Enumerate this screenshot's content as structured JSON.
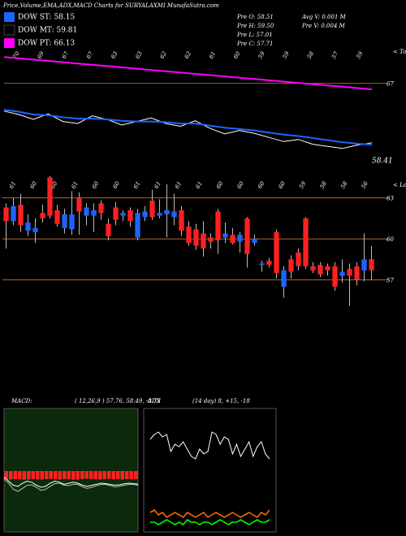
{
  "header": {
    "title": "Price,Volume,EMA,ADX,MACD Charts for SURYALAXMI MunafaSutra.com",
    "info": [
      [
        "Pre O: 58.51",
        "Avg V: 0.001 M"
      ],
      [
        "Pre H: 59.50",
        "Pre V: 0.004 M"
      ],
      [
        "Pre L: 57.01"
      ],
      [
        "Pre C: 57.71"
      ]
    ]
  },
  "chart_data": [
    {
      "type": "line",
      "corner_label": "< Tops",
      "peak_labels": [
        70,
        69,
        67,
        67,
        63,
        63,
        62,
        62,
        61,
        60,
        59,
        59,
        58,
        57,
        59
      ],
      "ylim": [
        55,
        72
      ],
      "yticks": [
        67
      ],
      "tick_color": "#c87533",
      "last_value": 58.41,
      "series": [
        {
          "color": "#ffffff",
          "values": [
            63,
            62.5,
            61.8,
            62.6,
            61.5,
            61.2,
            62.3,
            61.8,
            61,
            61.5,
            62,
            61.2,
            60.8,
            61.6,
            60.5,
            59.7,
            60.2,
            59.8,
            59.2,
            58.6,
            58.9,
            58.2,
            57.9,
            57.6,
            58.1,
            58.41
          ]
        },
        {
          "name": "DOW ST: 58.15",
          "color": "#1e64ff",
          "values": [
            63.2,
            62.9,
            62.5,
            62.4,
            62.1,
            61.9,
            61.9,
            61.8,
            61.6,
            61.5,
            61.5,
            61.4,
            61.2,
            61.2,
            60.9,
            60.6,
            60.4,
            60.2,
            59.9,
            59.6,
            59.4,
            59.1,
            58.8,
            58.5,
            58.3,
            58.15
          ]
        },
        {
          "name": "DOW MT: 59.81",
          "color": "#000000",
          "values": [
            64.5,
            64.31,
            64.12,
            63.94,
            63.75,
            63.56,
            63.37,
            63.19,
            63.0,
            62.81,
            62.62,
            62.44,
            62.25,
            62.06,
            61.87,
            61.69,
            61.5,
            61.31,
            61.12,
            60.94,
            60.75,
            60.56,
            60.37,
            60.19,
            60.0,
            59.81
          ]
        },
        {
          "name": "DOW PT: 66.13",
          "color": "#ff00ff",
          "values": [
            70.8,
            70.61,
            70.43,
            70.24,
            70.05,
            69.87,
            69.68,
            69.49,
            69.31,
            69.12,
            68.93,
            68.75,
            68.56,
            68.37,
            68.19,
            68.0,
            67.81,
            67.63,
            67.44,
            67.25,
            67.07,
            66.88,
            66.69,
            66.51,
            66.32,
            66.13
          ]
        }
      ]
    },
    {
      "type": "candlestick",
      "corner_label": "< Lows",
      "peak_labels": [
        61,
        60,
        60,
        61,
        60,
        60,
        61,
        61,
        61,
        61,
        60,
        60,
        60,
        60,
        59,
        58,
        58,
        56
      ],
      "ylim": [
        53,
        65
      ],
      "yticks": [
        63,
        60,
        57
      ],
      "tick_color": "#c87533",
      "up_color": "#1e64ff",
      "down_color": "#ff2020",
      "open": [
        62.3,
        61.3,
        62.5,
        60.6,
        60.5,
        61.9,
        64.5,
        62.1,
        60.8,
        60.7,
        63.0,
        61.7,
        61.7,
        62.6,
        61.1,
        62.3,
        61.7,
        62.1,
        60.1,
        61.6,
        62.8,
        61.7,
        61.8,
        61.6,
        62.1,
        60.9,
        60.7,
        60.4,
        60.1,
        62.0,
        60.1,
        60.3,
        59.8,
        61.5,
        59.7,
        58.1,
        58.4,
        60.5,
        56.5,
        58.5,
        59.0,
        61.5,
        58.0,
        58.1,
        58.0,
        58.0,
        57.3,
        57.8,
        58.0,
        57.7,
        58.51
      ],
      "high": [
        62.6,
        63.0,
        63.3,
        61.8,
        61.5,
        62.5,
        64.6,
        62.5,
        62.2,
        63.5,
        63.4,
        62.6,
        62.6,
        62.8,
        61.5,
        62.7,
        62.1,
        62.3,
        62.2,
        62.4,
        63.6,
        62.9,
        64.0,
        63.3,
        62.4,
        61.3,
        61.1,
        61.3,
        60.4,
        62.2,
        61.2,
        60.8,
        60.5,
        61.6,
        60.3,
        58.4,
        58.6,
        60.7,
        58.0,
        58.8,
        59.3,
        61.6,
        58.3,
        58.3,
        58.2,
        58.3,
        58.5,
        58.2,
        58.3,
        60.4,
        59.5
      ],
      "low": [
        59.3,
        61.0,
        60.5,
        60.2,
        59.7,
        61.2,
        61.5,
        60.9,
        60.4,
        60.3,
        60.3,
        61.0,
        60.5,
        61.4,
        59.9,
        61.0,
        61.3,
        60.9,
        59.9,
        61.3,
        61.4,
        61.5,
        60.1,
        61.0,
        60.2,
        59.5,
        59.2,
        58.7,
        59.3,
        58.9,
        59.7,
        59.6,
        59.0,
        57.9,
        59.5,
        57.6,
        57.9,
        57.1,
        55.7,
        57.1,
        57.7,
        57.8,
        57.5,
        57.2,
        57.3,
        56.2,
        56.8,
        55.1,
        56.6,
        56.9,
        57.01
      ],
      "close": [
        61.3,
        62.4,
        61.0,
        61.2,
        60.8,
        61.5,
        61.7,
        61.1,
        61.8,
        61.8,
        62.0,
        62.3,
        62.1,
        61.9,
        60.2,
        61.4,
        61.9,
        61.3,
        61.9,
        62.0,
        61.6,
        61.9,
        62.1,
        62.0,
        60.6,
        59.7,
        59.5,
        59.3,
        59.8,
        59.9,
        60.4,
        59.7,
        60.3,
        58.9,
        60.0,
        58.2,
        58.1,
        57.5,
        57.7,
        57.6,
        58.0,
        58.0,
        57.7,
        57.4,
        57.7,
        56.5,
        57.6,
        57.3,
        57.0,
        58.5,
        57.71
      ]
    },
    {
      "type": "macd",
      "label": "MACD:",
      "params": "( 12,26,9 ) 57.76, 58.49, -0.73",
      "background": "#0b2a0b",
      "ylim": [
        -3,
        3
      ],
      "bar_color": "#ff2020",
      "histogram": [
        -0.4,
        -0.42,
        -0.4,
        -0.41,
        -0.43,
        -0.42,
        -0.4,
        -0.41,
        -0.42,
        -0.4,
        -0.39,
        -0.41,
        -0.42,
        -0.4,
        -0.41,
        -0.43,
        -0.42,
        -0.4,
        -0.38,
        -0.4,
        -0.41,
        -0.42,
        -0.4,
        -0.39,
        -0.41,
        -0.4,
        -0.42,
        -0.4,
        -0.41,
        -0.4
      ],
      "series": [
        {
          "color": "#ffffff",
          "values": [
            -0.3,
            -0.5,
            -0.7,
            -0.75,
            -0.6,
            -0.5,
            -0.55,
            -0.7,
            -0.8,
            -0.75,
            -0.6,
            -0.5,
            -0.55,
            -0.65,
            -0.6,
            -0.55,
            -0.6,
            -0.7,
            -0.75,
            -0.7,
            -0.65,
            -0.6,
            -0.62,
            -0.66,
            -0.7,
            -0.68,
            -0.63,
            -0.6,
            -0.62,
            -0.65
          ]
        },
        {
          "color": "#bbbbbb",
          "values": [
            -0.4,
            -0.6,
            -0.9,
            -1.0,
            -0.85,
            -0.7,
            -0.68,
            -0.8,
            -0.95,
            -0.9,
            -0.75,
            -0.62,
            -0.6,
            -0.7,
            -0.72,
            -0.65,
            -0.66,
            -0.78,
            -0.85,
            -0.8,
            -0.72,
            -0.66,
            -0.66,
            -0.72,
            -0.78,
            -0.75,
            -0.7,
            -0.66,
            -0.66,
            -0.7
          ]
        }
      ]
    },
    {
      "type": "adx",
      "label": "ADX",
      "params": "(14 day) 8, +15, -18",
      "ylim": [
        0,
        50
      ],
      "series": [
        {
          "color": "#ffffff",
          "values": [
            38,
            40,
            41,
            39,
            40,
            33,
            36,
            35,
            37,
            34,
            31,
            30,
            34,
            32,
            33,
            41,
            40,
            36,
            39,
            38,
            32,
            36,
            31,
            34,
            37,
            31,
            35,
            37,
            32,
            30
          ]
        },
        {
          "color": "#00ff00",
          "values": [
            4,
            4,
            3,
            4,
            5,
            4,
            3,
            4,
            3,
            5,
            4,
            4,
            3,
            4,
            4,
            3,
            4,
            5,
            4,
            3,
            4,
            4,
            5,
            4,
            3,
            4,
            5,
            4,
            4,
            5
          ]
        },
        {
          "color": "#ff6600",
          "values": [
            8,
            9,
            7,
            8,
            6,
            7,
            8,
            7,
            6,
            8,
            7,
            6,
            7,
            8,
            6,
            7,
            8,
            7,
            6,
            7,
            8,
            7,
            6,
            7,
            8,
            7,
            6,
            8,
            7,
            9
          ]
        }
      ]
    }
  ]
}
